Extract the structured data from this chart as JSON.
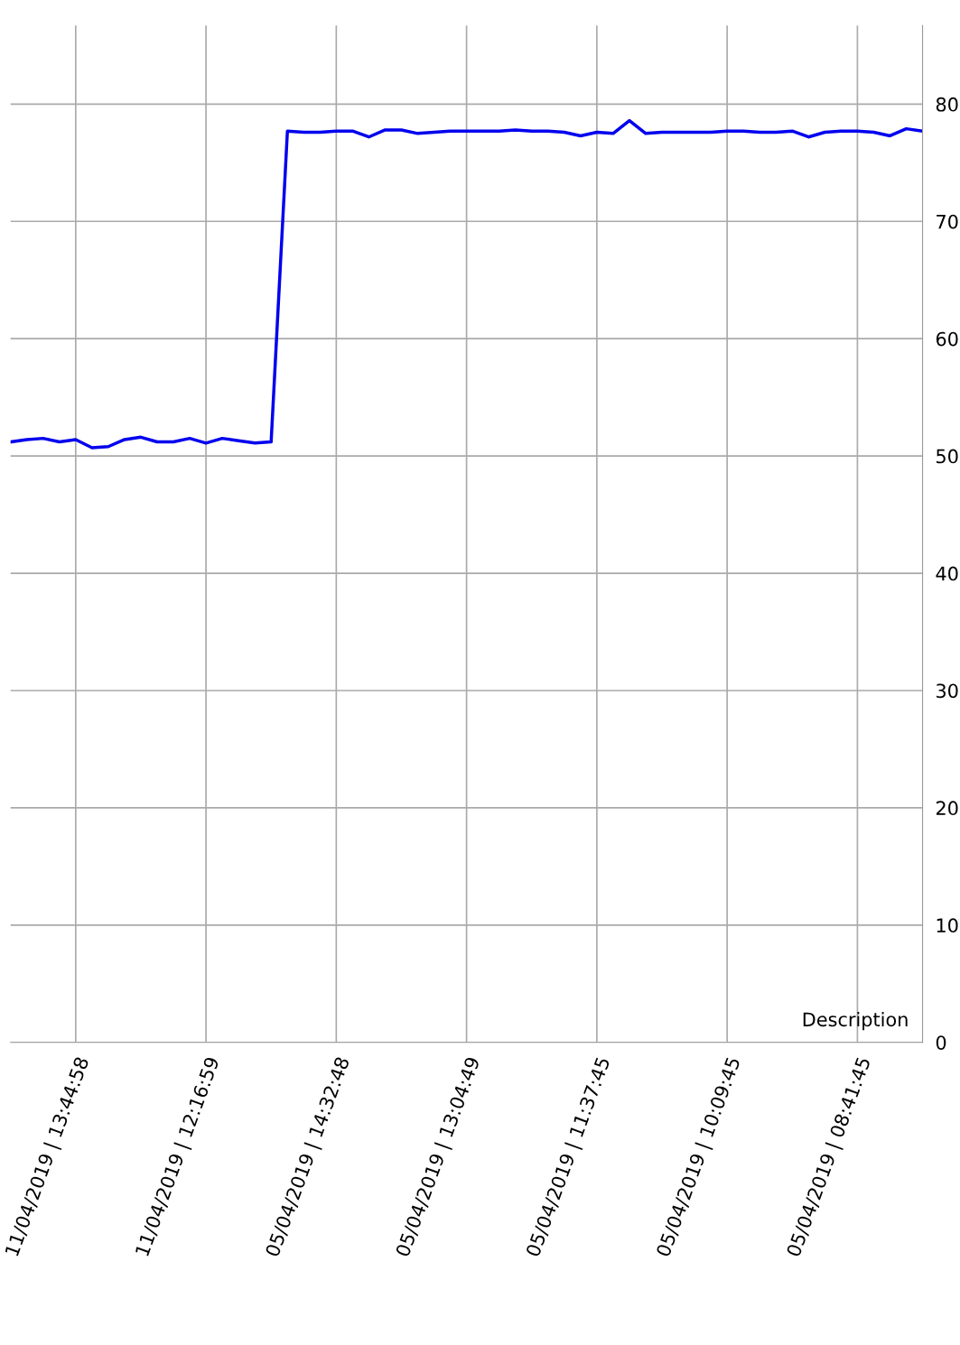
{
  "chart_data": {
    "type": "line",
    "categories": [
      null,
      null,
      null,
      null,
      "11/04/2019 | 13:44:58",
      null,
      null,
      null,
      null,
      null,
      null,
      null,
      "11/04/2019 | 12:16:59",
      null,
      null,
      null,
      null,
      null,
      null,
      null,
      "05/04/2019 | 14:32:48",
      null,
      null,
      null,
      null,
      null,
      null,
      null,
      "05/04/2019 | 13:04:49",
      null,
      null,
      null,
      null,
      null,
      null,
      null,
      "05/04/2019 | 11:37:45",
      null,
      null,
      null,
      null,
      null,
      null,
      null,
      "05/04/2019 | 10:09:45",
      null,
      null,
      null,
      null,
      null,
      null,
      null,
      "05/04/2019 | 08:41:45",
      null,
      null,
      null,
      null
    ],
    "series": [
      {
        "color": "#0000ee",
        "values": [
          51.2,
          51.4,
          51.5,
          51.2,
          51.4,
          50.7,
          50.8,
          51.4,
          51.6,
          51.2,
          51.2,
          51.5,
          51.1,
          51.5,
          51.3,
          51.1,
          51.2,
          77.7,
          77.6,
          77.6,
          77.7,
          77.7,
          77.2,
          77.8,
          77.8,
          77.5,
          77.6,
          77.7,
          77.7,
          77.7,
          77.7,
          77.8,
          77.7,
          77.7,
          77.6,
          77.3,
          77.6,
          77.5,
          78.6,
          77.5,
          77.6,
          77.6,
          77.6,
          77.6,
          77.7,
          77.7,
          77.6,
          77.6,
          77.7,
          77.2,
          77.6,
          77.7,
          77.7,
          77.6,
          77.3,
          77.9,
          77.7
        ]
      }
    ],
    "ylim": [
      0,
      86.7
    ],
    "yticks": [
      0,
      10,
      20,
      30,
      40,
      50,
      60,
      70,
      80
    ],
    "grid": true,
    "legend": false,
    "marker": "none",
    "line_style": "solid",
    "annotations": [
      "Description"
    ]
  }
}
